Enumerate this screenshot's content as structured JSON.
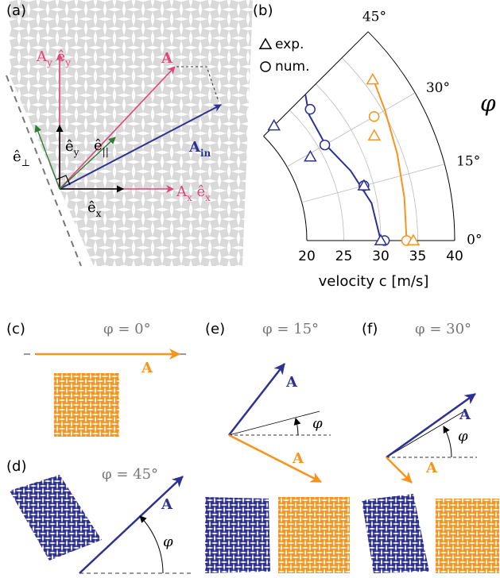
{
  "panel_a": {
    "label": "(a)",
    "labels": [
      {
        "color": "#e0457b",
        "bold": false,
        "segments": [
          {
            "t": "A"
          },
          {
            "t": "y",
            "sub": true
          },
          {
            "t": " ê"
          },
          {
            "t": "y",
            "sub": true
          }
        ]
      },
      {
        "color": "#e0457b",
        "bold": true,
        "segments": [
          {
            "t": "A"
          }
        ]
      },
      {
        "color": "#000000",
        "bold": false,
        "segments": [
          {
            "t": "ê"
          },
          {
            "t": "y",
            "sub": true
          }
        ]
      },
      {
        "color": "#000000",
        "bold": false,
        "segments": [
          {
            "t": "ê"
          },
          {
            "t": "||",
            "sub": true
          }
        ]
      },
      {
        "color": "#2e3192",
        "bold": true,
        "segments": [
          {
            "t": "A"
          },
          {
            "t": "in",
            "sub": true
          }
        ]
      },
      {
        "color": "#000000",
        "bold": false,
        "segments": [
          {
            "t": "ê"
          },
          {
            "t": "⊥",
            "sub": true
          }
        ]
      },
      {
        "color": "#000000",
        "bold": false,
        "segments": [
          {
            "t": "ê"
          },
          {
            "t": "x",
            "sub": true
          }
        ]
      },
      {
        "color": "#e0457b",
        "bold": false,
        "segments": [
          {
            "t": "A"
          },
          {
            "t": "x",
            "sub": true
          },
          {
            "t": " ê"
          },
          {
            "t": "x",
            "sub": true
          }
        ]
      }
    ]
  },
  "chart_data": {
    "type": "polar",
    "label": "(b)",
    "xlabel": "velocity c [m/s]",
    "ylabel": "φ",
    "rlim": [
      20,
      40
    ],
    "rticks": [
      20,
      25,
      30,
      35,
      40
    ],
    "philim": [
      0,
      45
    ],
    "phiticks": [
      {
        "value": 0,
        "label": "0°"
      },
      {
        "value": 15,
        "label": "15°"
      },
      {
        "value": 30,
        "label": "30°"
      },
      {
        "value": 45,
        "label": "45°"
      }
    ],
    "grid": true,
    "legend": [
      {
        "label": "exp.",
        "marker": "triangle"
      },
      {
        "label": "num.",
        "marker": "circle"
      }
    ],
    "series": [
      {
        "color": "#2e3192",
        "marker": "line",
        "phi": [
          0,
          10,
          20,
          30,
          40,
          45
        ],
        "values": [
          30,
          29.2,
          27.6,
          26,
          26.5,
          28
        ]
      },
      {
        "color": "#2e3192",
        "marker": "circle",
        "phi": [
          0,
          15,
          30,
          41
        ],
        "values": [
          30.5,
          28.7,
          25.9,
          27.1
        ]
      },
      {
        "color": "#2e3192",
        "marker": "triangle",
        "phi": [
          0,
          15,
          29,
          45
        ],
        "values": [
          30,
          28.7,
          23.4,
          22
        ]
      },
      {
        "color": "#f7941d",
        "marker": "line",
        "phi": [
          0,
          10,
          20,
          30,
          37
        ],
        "values": [
          33.5,
          33.7,
          34.3,
          35.3,
          36.3
        ]
      },
      {
        "color": "#f7941d",
        "marker": "circle",
        "phi": [
          0,
          30
        ],
        "values": [
          33.5,
          33.6
        ]
      },
      {
        "color": "#f7941d",
        "marker": "triangle",
        "phi": [
          0,
          26,
          37
        ],
        "values": [
          34.4,
          32.4,
          36.2
        ]
      }
    ]
  },
  "panel_c": {
    "label": "(c)",
    "title": "φ = 0°",
    "vector": "A"
  },
  "panel_d": {
    "label": "(d)",
    "title": "φ = 45°",
    "vector": "A",
    "angle": "φ"
  },
  "panel_e": {
    "label": "(e)",
    "title": "φ = 15°",
    "vectors": [
      "A",
      "A"
    ],
    "angle": "φ"
  },
  "panel_f": {
    "label": "(f)",
    "title": "φ = 30°",
    "vectors": [
      "A",
      "A"
    ],
    "angle": "φ"
  }
}
